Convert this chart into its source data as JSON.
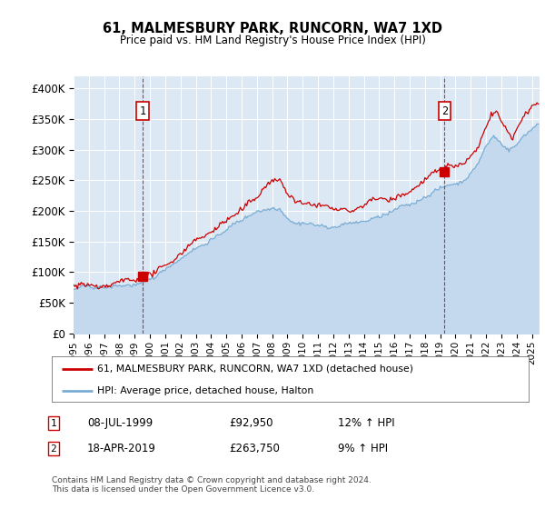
{
  "title": "61, MALMESBURY PARK, RUNCORN, WA7 1XD",
  "subtitle": "Price paid vs. HM Land Registry's House Price Index (HPI)",
  "ylim": [
    0,
    420000
  ],
  "xlim_start": 1995.0,
  "xlim_end": 2025.5,
  "plot_bg_color": "#dce9f5",
  "grid_color": "#ffffff",
  "red_line_color": "#cc0000",
  "blue_line_color": "#7aadd4",
  "blue_fill_color": "#c5d9ee",
  "marker1_date": 1999.52,
  "marker1_value": 92950,
  "marker2_date": 2019.28,
  "marker2_value": 263750,
  "legend_line1": "61, MALMESBURY PARK, RUNCORN, WA7 1XD (detached house)",
  "legend_line2": "HPI: Average price, detached house, Halton",
  "table_row1": [
    "1",
    "08-JUL-1999",
    "£92,950",
    "12% ↑ HPI"
  ],
  "table_row2": [
    "2",
    "18-APR-2019",
    "£263,750",
    "9% ↑ HPI"
  ],
  "footer": "Contains HM Land Registry data © Crown copyright and database right 2024.\nThis data is licensed under the Open Government Licence v3.0.",
  "xtick_years": [
    1995,
    1996,
    1997,
    1998,
    1999,
    2000,
    2001,
    2002,
    2003,
    2004,
    2005,
    2006,
    2007,
    2008,
    2009,
    2010,
    2011,
    2012,
    2013,
    2014,
    2015,
    2016,
    2017,
    2018,
    2019,
    2020,
    2021,
    2022,
    2023,
    2024,
    2025
  ]
}
